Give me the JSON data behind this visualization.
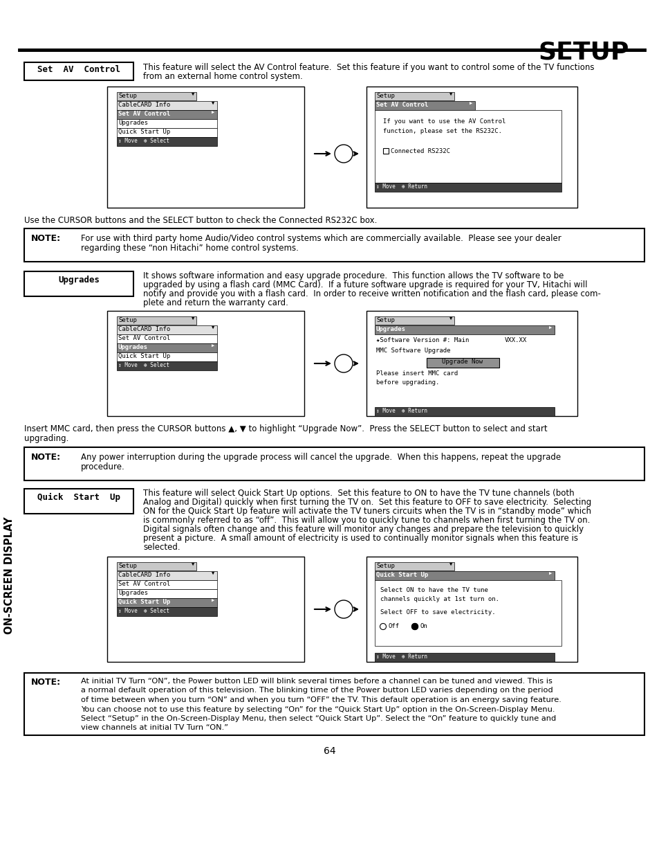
{
  "title": "SETUP",
  "page_num": "64",
  "bg_color": "#ffffff",
  "text_color": "#000000",
  "sidebar_text": "ON-SCREEN DISPLAY",
  "cursor_text1": "Use the CURSOR buttons and the SELECT button to check the Connected RS232C box.",
  "cursor_text2a": "Insert MMC card, then press the CURSOR buttons ▲, ▼ to highlight “Upgrade Now”.  Press the SELECT button to select and start",
  "cursor_text2b": "upgrading.",
  "note1_text1": "For use with third party home Audio/Video control systems which are commercially available.  Please see your dealer",
  "note1_text2": "regarding these “non Hitachi” home control systems.",
  "note2_text1": "Any power interruption during the upgrade process will cancel the upgrade.  When this happens, repeat the upgrade",
  "note2_text2": "procedure.",
  "note3_lines": [
    "At initial TV Turn “ON”, the Power button LED will blink several times before a channel can be tuned and viewed. This is",
    "a normal default operation of this television. The blinking time of the Power button LED varies depending on the period",
    "of time between when you turn “ON” and when you turn “OFF” the TV. This default operation is an energy saving feature.",
    "You can choose not to use this feature by selecting “On” for the “Quick Start Up” option in the On-Screen-Display Menu.",
    "Select “Setup” in the On-Screen-Display Menu, then select “Quick Start Up”. Select the “On” feature to quickly tune and",
    "view channels at initial TV Turn “ON.”"
  ],
  "sec1_label": "Set  AV  Control",
  "sec1_desc1": "This feature will select the AV Control feature.  Set this feature if you want to control some of the TV functions",
  "sec1_desc2": "from an external home control system.",
  "sec2_label": "Upgrades",
  "sec2_desc1": "It shows software information and easy upgrade procedure.  This function allows the TV software to be",
  "sec2_desc2": "upgraded by using a flash card (MMC Card).  If a future software upgrade is required for your TV, Hitachi will",
  "sec2_desc3": "notify and provide you with a flash card.  In order to receive written notification and the flash card, please com-",
  "sec2_desc4": "plete and return the warranty card.",
  "sec3_label": "Quick  Start  Up",
  "sec3_desc1": "This feature will select Quick Start Up options.  Set this feature to ON to have the TV tune channels (both",
  "sec3_desc2": "Analog and Digital) quickly when first turning the TV on.  Set this feature to OFF to save electricity.  Selecting",
  "sec3_desc3": "ON for the Quick Start Up feature will activate the TV tuners circuits when the TV is in “standby mode” which",
  "sec3_desc4": "is commonly referred to as “off”.  This will allow you to quickly tune to channels when first turning the TV on.",
  "sec3_desc5": "Digital signals often change and this feature will monitor any changes and prepare the television to quickly",
  "sec3_desc6": "present a picture.  A small amount of electricity is used to continually monitor signals when this feature is",
  "sec3_desc7": "selected."
}
